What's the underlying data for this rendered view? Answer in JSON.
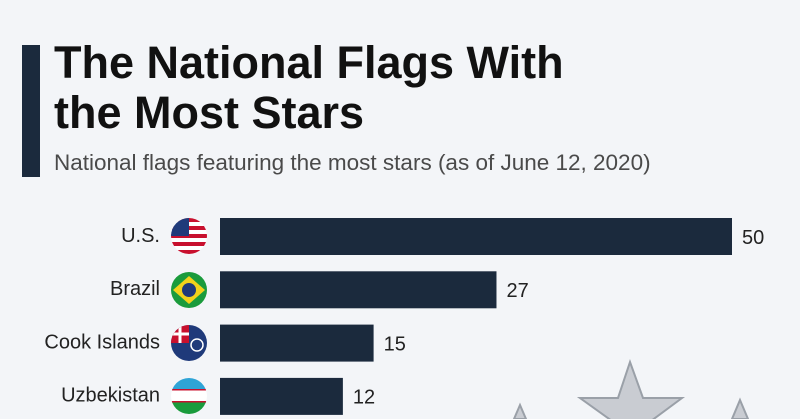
{
  "chart_data": {
    "type": "bar",
    "title": "The National Flags With the Most Stars",
    "subtitle": "National flags featuring the most stars (as of June 12, 2020)",
    "categories": [
      "U.S.",
      "Brazil",
      "Cook Islands",
      "Uzbekistan"
    ],
    "values": [
      50,
      27,
      15,
      12
    ],
    "color": "#1b2a3d"
  }
}
